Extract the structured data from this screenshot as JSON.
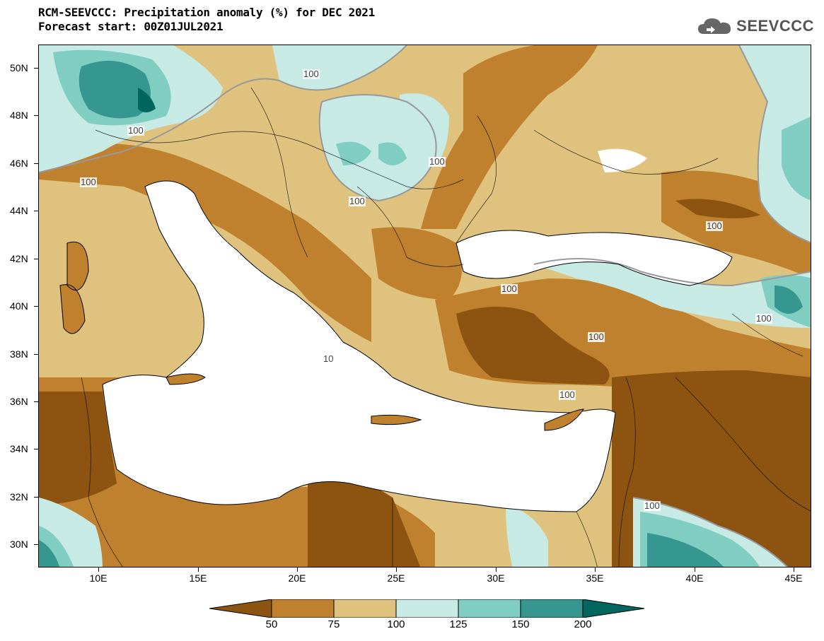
{
  "header": {
    "title_line1": "RCM-SEEVCCC: Precipitation anomaly (%) for DEC 2021",
    "title_line2": "Forecast start: 00Z01JUL2021"
  },
  "logo": {
    "text": "SEEVCCC",
    "icon": "cloud-icon"
  },
  "map": {
    "y_ticks": [
      "50N",
      "48N",
      "46N",
      "44N",
      "42N",
      "40N",
      "38N",
      "36N",
      "34N",
      "32N",
      "30N"
    ],
    "x_ticks": [
      "10E",
      "15E",
      "20E",
      "25E",
      "30E",
      "35E",
      "40E",
      "45E"
    ],
    "contour_labels": [
      "100",
      "100",
      "100",
      "100",
      "100",
      "100",
      "100",
      "100",
      "100",
      "100",
      "100",
      "10"
    ]
  },
  "colorbar": {
    "labels": [
      "50",
      "75",
      "100",
      "125",
      "150",
      "200"
    ],
    "colors": [
      "#8c5410",
      "#bf812d",
      "#dfc27d",
      "#c7eae5",
      "#80cdc1",
      "#35978f",
      "#01665e"
    ]
  }
}
